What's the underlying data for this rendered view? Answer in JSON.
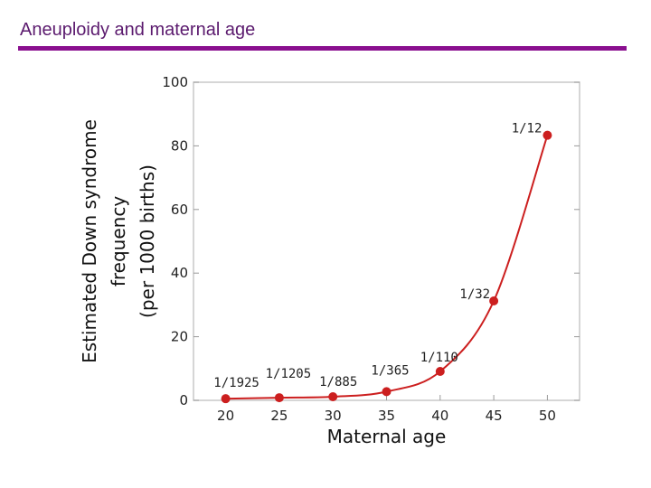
{
  "slide": {
    "title": "Aneuploidy and maternal age",
    "rule_color": "#8a0f8f",
    "title_color": "#5b1a6e"
  },
  "chart_data": {
    "type": "line",
    "title": "",
    "xlabel": "Maternal age",
    "ylabel_lines": [
      "Estimated Down syndrome",
      "frequency",
      "(per 1000 births)"
    ],
    "xlim": [
      17,
      53
    ],
    "ylim": [
      0,
      100
    ],
    "x_ticks": [
      20,
      25,
      30,
      35,
      40,
      45,
      50
    ],
    "y_ticks": [
      0,
      20,
      40,
      60,
      80,
      100
    ],
    "grid": false,
    "series": [
      {
        "name": "Down syndrome frequency",
        "color": "#cc1f1f",
        "x": [
          20,
          25,
          30,
          35,
          40,
          45,
          50
        ],
        "y": [
          0.52,
          0.83,
          1.13,
          2.74,
          9.09,
          31.25,
          83.33
        ],
        "labels": [
          "1/1925",
          "1/1205",
          "1/885",
          "1/365",
          "1/110",
          "1/32",
          "1/12"
        ]
      }
    ]
  }
}
